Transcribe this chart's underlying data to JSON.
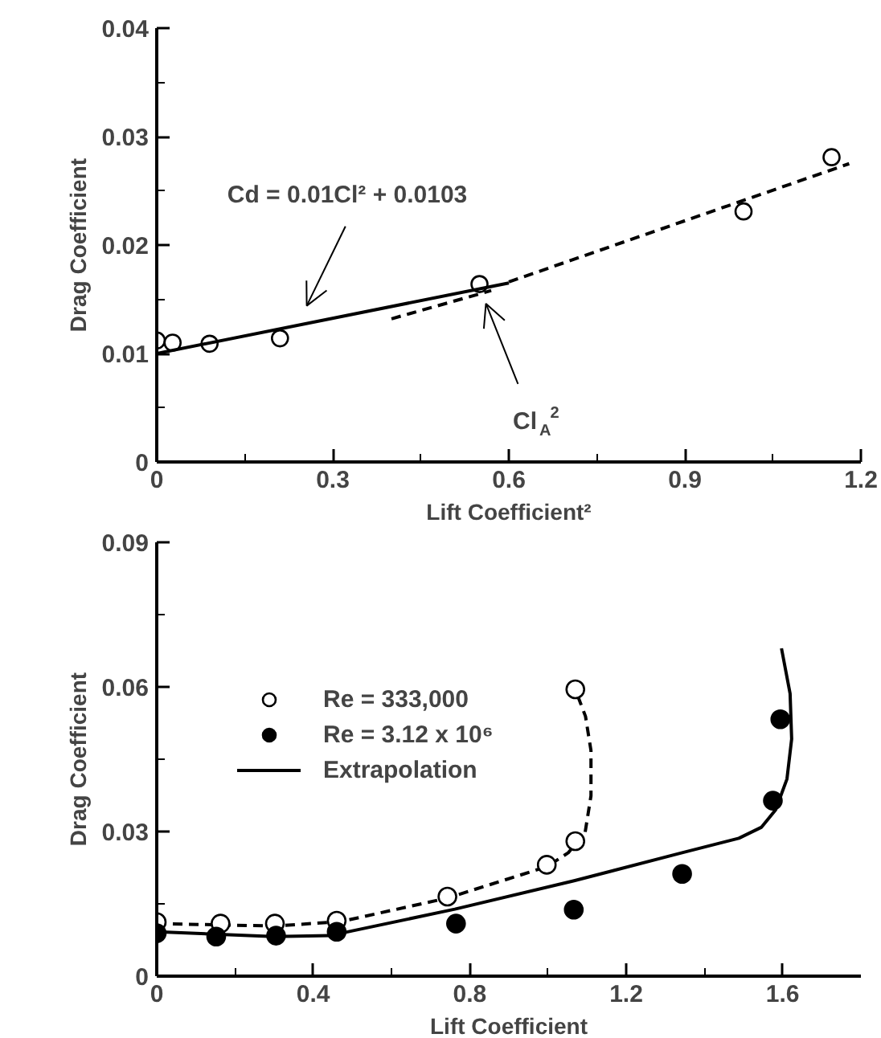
{
  "chart_data": [
    {
      "type": "scatter",
      "xlabel": "Lift Coefficient²",
      "ylabel": "Drag Coefficient",
      "xlim": [
        0,
        1.2
      ],
      "ylim": [
        0,
        0.04
      ],
      "xticks": [
        0,
        {
          "value": 0.15,
          "label": null
        },
        0.3,
        {
          "value": 0.45,
          "label": null
        },
        0.6,
        {
          "value": 0.75,
          "label": null
        },
        0.9,
        {
          "value": 1.05,
          "label": null
        },
        1.2
      ],
      "yticks": [
        0,
        {
          "value": 0.005,
          "label": null
        },
        0.01,
        {
          "value": 0.015,
          "label": null
        },
        0.02,
        {
          "value": 0.025,
          "label": null
        },
        0.03,
        {
          "value": 0.035,
          "label": null
        },
        0.04
      ],
      "grid": false,
      "legend": false,
      "series": [
        {
          "marker": "circle",
          "color": "#ffffff",
          "x": [
            0,
            0.027,
            0.09,
            0.21,
            0.55,
            1.0,
            1.15
          ],
          "values": [
            0.0112,
            0.011,
            0.0109,
            0.0114,
            0.0164,
            0.0231,
            0.0281
          ]
        },
        {
          "type": "line",
          "color": "#000000",
          "line_style": "solid",
          "x": [
            0,
            0.6
          ],
          "values": [
            0.01,
            0.0165
          ]
        },
        {
          "type": "line",
          "color": "#000000",
          "line_style": "dashed",
          "x": [
            0.6,
            1.18
          ],
          "values": [
            0.0166,
            0.0275
          ]
        },
        {
          "type": "line",
          "color": "#000000",
          "line_style": "dashed",
          "x": [
            0.4,
            0.57
          ],
          "values": [
            0.0132,
            0.0158
          ]
        }
      ],
      "annotations": [
        "Cd = 0.01Cl² + 0.0103",
        "Cl$_{A}$$^{2}$"
      ]
    },
    {
      "type": "scatter",
      "xlabel": "Lift Coefficient",
      "ylabel": "Drag Coefficient",
      "xlim": [
        0,
        1.8
      ],
      "ylim": [
        0,
        0.09
      ],
      "xticks": [
        0,
        {
          "value": 0.2,
          "label": null
        },
        0.4,
        {
          "value": 0.6,
          "label": null
        },
        0.8,
        {
          "value": 1.0,
          "label": null
        },
        1.2,
        {
          "value": 1.4,
          "label": null
        },
        1.6
      ],
      "yticks": [
        0,
        {
          "value": 0.015,
          "label": null
        },
        0.03,
        {
          "value": 0.045,
          "label": null
        },
        0.06,
        {
          "value": 0.075,
          "label": null
        },
        0.09
      ],
      "grid": false,
      "legend": "top left",
      "series": [
        {
          "type": "line",
          "color": "#000000",
          "line_style": "dashed",
          "x": [
            0,
            0.3,
            0.47,
            0.743,
            0.997,
            1.052,
            1.095,
            1.11,
            1.11,
            1.096,
            1.074
          ],
          "values": [
            0.0109,
            0.0104,
            0.0113,
            0.0162,
            0.0227,
            0.0256,
            0.0298,
            0.0374,
            0.0468,
            0.0539,
            0.0586
          ]
        },
        {
          "type": "line",
          "name": "Extrapolation",
          "color": "#000000",
          "line_style": "solid",
          "x": [
            0,
            0.3,
            0.443,
            0.5,
            0.762,
            1.067,
            1.343,
            1.488,
            1.546,
            1.582,
            1.611,
            1.623,
            1.619,
            1.597
          ],
          "values": [
            0.0092,
            0.0082,
            0.0084,
            0.0094,
            0.0139,
            0.0198,
            0.0256,
            0.0286,
            0.0309,
            0.0345,
            0.0409,
            0.0492,
            0.0586,
            0.068
          ]
        },
        {
          "name": "Re = 333,000",
          "marker": "circle",
          "color": "#ffffff",
          "x": [
            0,
            0.163,
            0.302,
            0.46,
            0.743,
            0.997,
            1.07,
            1.07
          ],
          "values": [
            0.0112,
            0.0109,
            0.0109,
            0.0115,
            0.0165,
            0.0231,
            0.028,
            0.0595
          ]
        },
        {
          "name": "Re = 3.12 x 10⁶",
          "marker": "circle",
          "color": "#000000",
          "x": [
            0,
            0.152,
            0.305,
            0.46,
            0.765,
            1.066,
            1.343,
            1.575,
            1.594
          ],
          "values": [
            0.0089,
            0.0082,
            0.0084,
            0.0092,
            0.0109,
            0.0138,
            0.0212,
            0.0364,
            0.0533
          ]
        }
      ]
    }
  ]
}
